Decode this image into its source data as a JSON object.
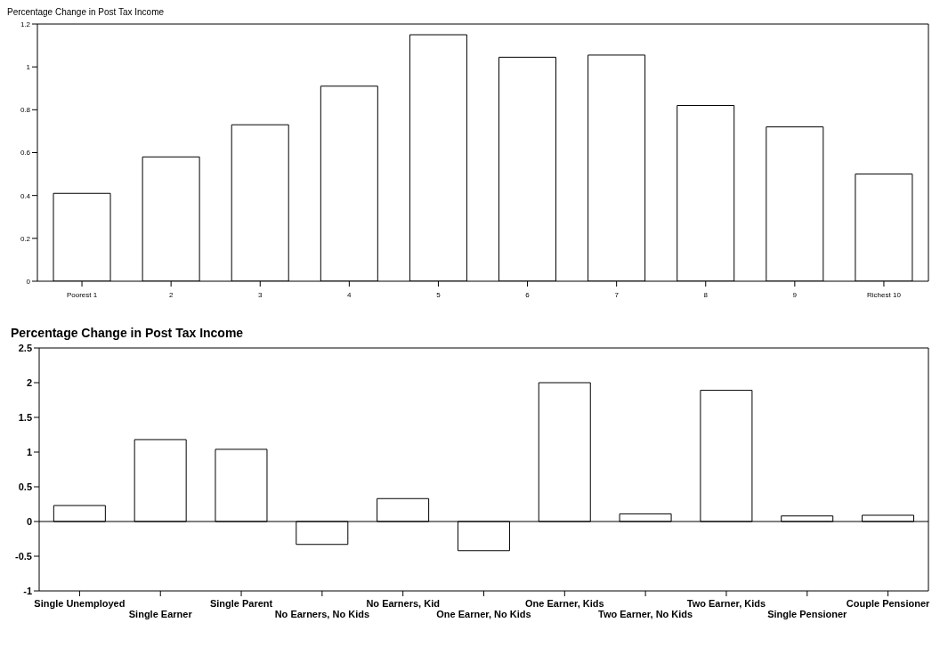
{
  "chart_data": [
    {
      "type": "bar",
      "title": "Percentage Change in Post Tax Income",
      "categories": [
        "Poorest 1",
        "2",
        "3",
        "4",
        "5",
        "6",
        "7",
        "8",
        "9",
        "Richest 10"
      ],
      "values": [
        0.41,
        0.58,
        0.73,
        0.91,
        1.15,
        1.045,
        1.055,
        0.82,
        0.72,
        0.5
      ],
      "color": "#ffffff",
      "ylim": [
        0,
        1.2
      ],
      "yticks": [
        0,
        {
          "value": 0.2,
          "label": "0.2"
        },
        {
          "value": 0.4,
          "label": "0.4"
        },
        {
          "value": 0.6,
          "label": "0.6"
        },
        {
          "value": 0.8,
          "label": "0.8"
        },
        1,
        {
          "value": 1.2,
          "label": "1.2"
        }
      ],
      "grid": false,
      "legend": false
    },
    {
      "type": "bar",
      "title": "Percentage Change in Post Tax Income",
      "categories": [
        "Single Unemployed",
        "Single Earner",
        "Single Parent",
        "No Earners, No Kids",
        "No Earners, Kid",
        "One Earner, No Kids",
        "One Earner, Kids",
        "Two Earner, No Kids",
        "Two Earner, Kids",
        "Single Pensioner",
        "Couple Pensioner"
      ],
      "values": [
        0.23,
        1.18,
        1.04,
        -0.33,
        0.33,
        -0.42,
        2.0,
        0.11,
        1.89,
        0.08,
        0.09
      ],
      "color": "#ffffff",
      "ylim": [
        -1,
        2.5
      ],
      "yticks": [
        -1,
        -0.5,
        0,
        0.5,
        1,
        1.5,
        2,
        2.5
      ],
      "grid": false,
      "legend": false,
      "ref_lines": [
        {
          "axis": "y",
          "value": 0,
          "color": "#000000"
        }
      ]
    }
  ]
}
